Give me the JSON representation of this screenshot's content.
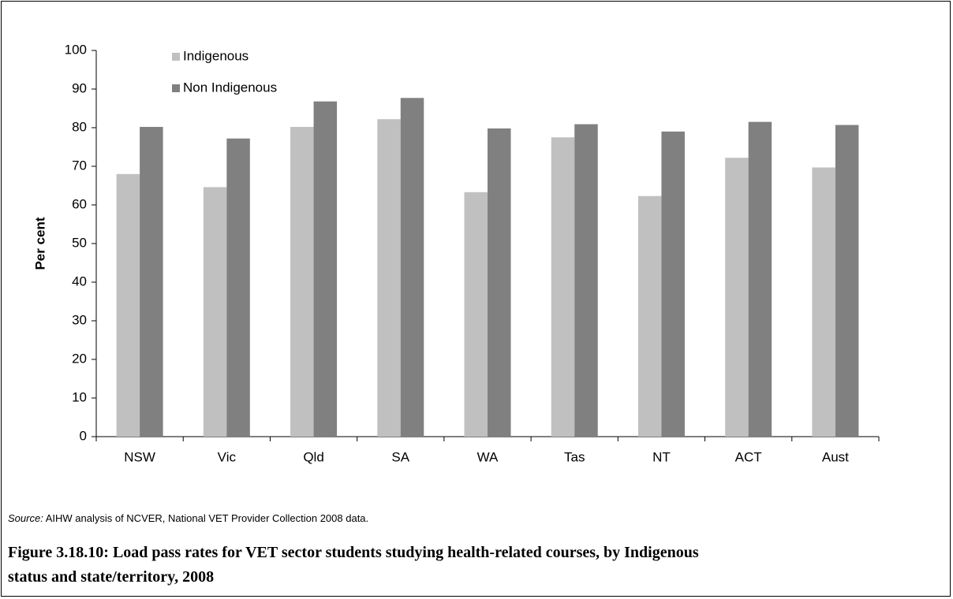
{
  "chart_data": {
    "type": "bar",
    "categories": [
      "NSW",
      "Vic",
      "Qld",
      "SA",
      "WA",
      "Tas",
      "NT",
      "ACT",
      "Aust"
    ],
    "series": [
      {
        "name": "Indigenous",
        "color": "#c0c0c0",
        "values": [
          68,
          64.6,
          80.2,
          82.2,
          63.3,
          77.5,
          62.3,
          72.2,
          69.7
        ]
      },
      {
        "name": "Non Indigenous",
        "color": "#808080",
        "values": [
          80.2,
          77.2,
          86.8,
          87.7,
          79.8,
          80.9,
          79,
          81.5,
          80.7
        ]
      }
    ],
    "y_label": "Per cent",
    "ylim": [
      0,
      100
    ],
    "yticks": [
      0,
      10,
      20,
      30,
      40,
      50,
      60,
      70,
      80,
      90,
      100
    ],
    "legend": "top-left"
  },
  "source_label": "Source:",
  "source_text": " AIHW analysis of NCVER, National VET Provider Collection 2008 data.",
  "caption": "Figure 3.18.10: Load pass rates for VET sector students studying health-related courses, by Indigenous status and state/territory, 2008"
}
